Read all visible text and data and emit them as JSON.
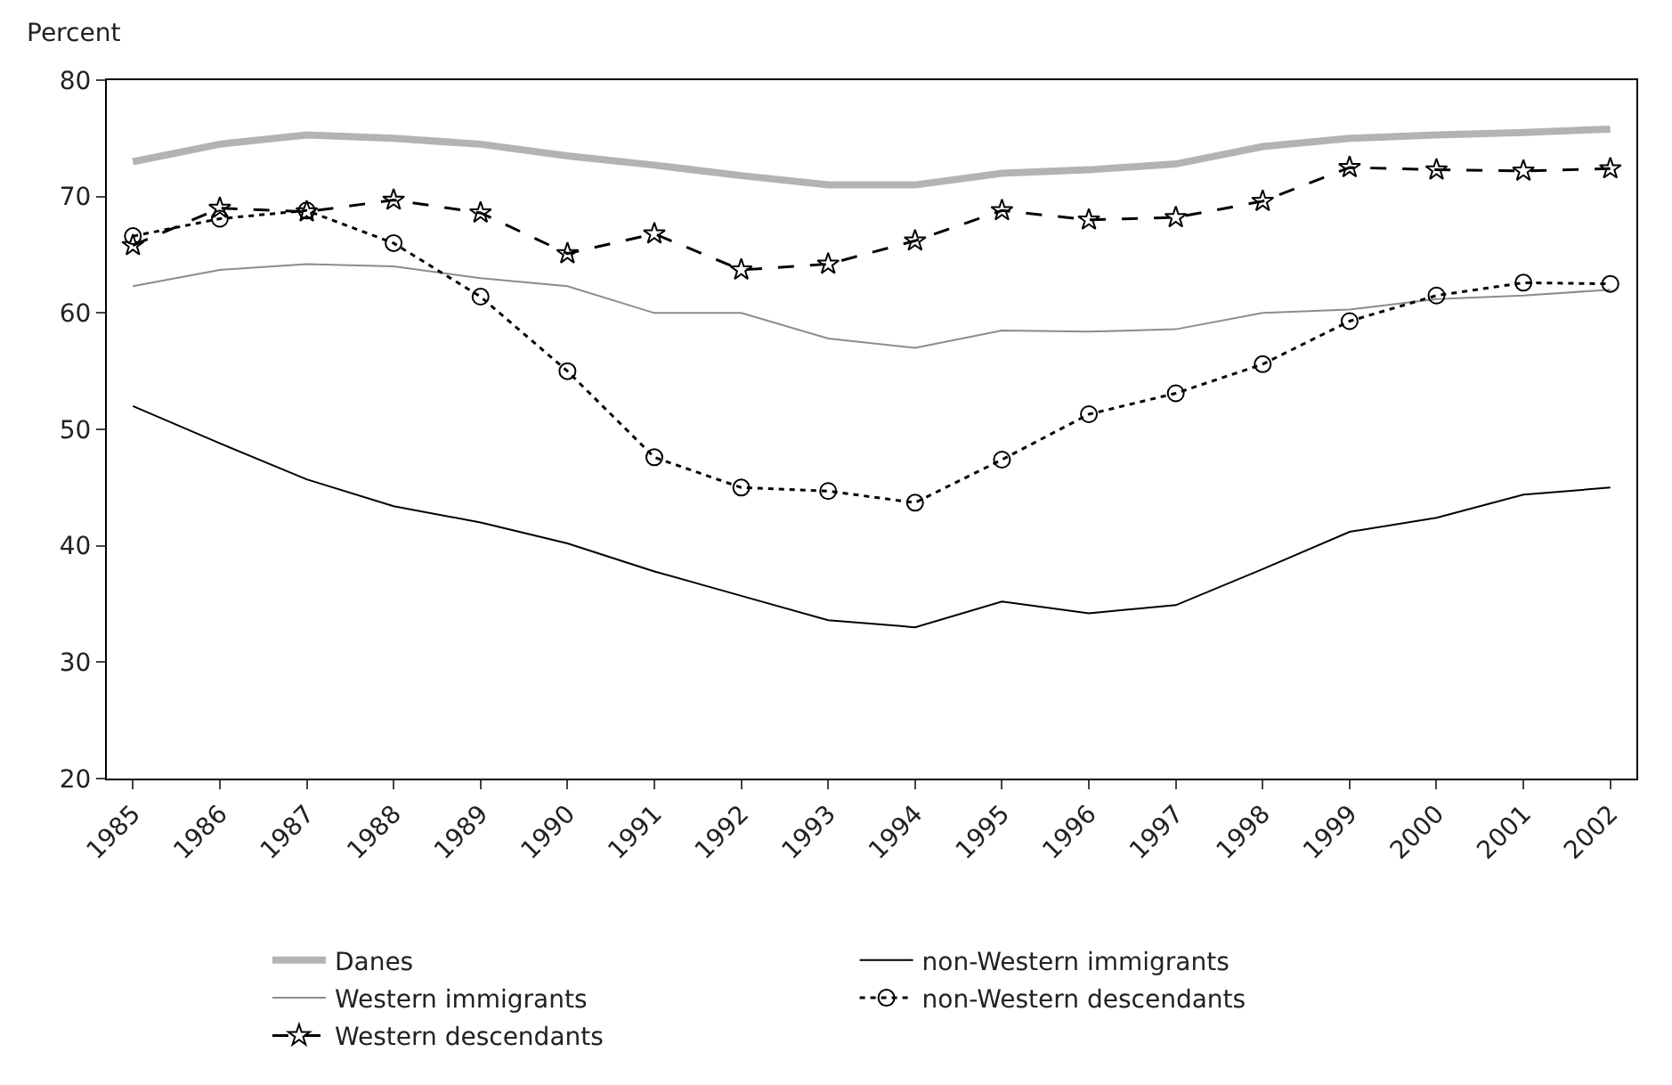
{
  "chart_data": {
    "type": "line",
    "ylabel": "Percent",
    "categories": [
      "1985",
      "1986",
      "1987",
      "1988",
      "1989",
      "1990",
      "1991",
      "1992",
      "1993",
      "1994",
      "1995",
      "1996",
      "1997",
      "1998",
      "1999",
      "2000",
      "2001",
      "2002"
    ],
    "ylim": [
      20,
      80
    ],
    "yticks": [
      20,
      30,
      40,
      50,
      60,
      70,
      80
    ],
    "legend": "bottom",
    "series": [
      {
        "name": "Danes",
        "color": "#b3b3b3",
        "marker": "none",
        "line_style": "solid",
        "values": [
          73,
          74.5,
          75.3,
          75,
          74.5,
          73.5,
          72.7,
          71.8,
          71,
          71,
          72,
          72.3,
          72.8,
          74.3,
          75,
          75.3,
          75.5,
          75.8
        ]
      },
      {
        "name": "non-Western immigrants",
        "color": "#000000",
        "marker": "none",
        "line_style": "solid",
        "values": [
          52,
          48.8,
          45.7,
          43.4,
          42,
          40.2,
          37.8,
          35.7,
          33.6,
          33,
          35.2,
          34.2,
          34.9,
          38,
          41.2,
          42.4,
          44.4,
          45
        ]
      },
      {
        "name": "Western immigrants",
        "color": "#8c8c8c",
        "marker": "none",
        "line_style": "solid",
        "values": [
          62.3,
          63.7,
          64.2,
          64,
          63,
          62.3,
          60,
          60,
          57.8,
          57,
          58.5,
          58.4,
          58.6,
          60,
          60.3,
          61.2,
          61.5,
          62
        ]
      },
      {
        "name": "non-Western descendants",
        "color": "#000000",
        "marker": "circle",
        "line_style": "dotted",
        "values": [
          66.6,
          68.1,
          68.8,
          66,
          61.4,
          55,
          47.6,
          45,
          44.7,
          43.7,
          47.4,
          51.3,
          53.1,
          55.6,
          59.3,
          61.5,
          62.6,
          62.5
        ]
      },
      {
        "name": "Western descendants",
        "color": "#000000",
        "marker": "star",
        "line_style": "dashed",
        "values": [
          65.8,
          69,
          68.7,
          69.7,
          68.6,
          65.1,
          66.8,
          63.7,
          64.2,
          66.2,
          68.8,
          68,
          68.2,
          69.6,
          72.5,
          72.3,
          72.2,
          72.4
        ]
      }
    ]
  }
}
